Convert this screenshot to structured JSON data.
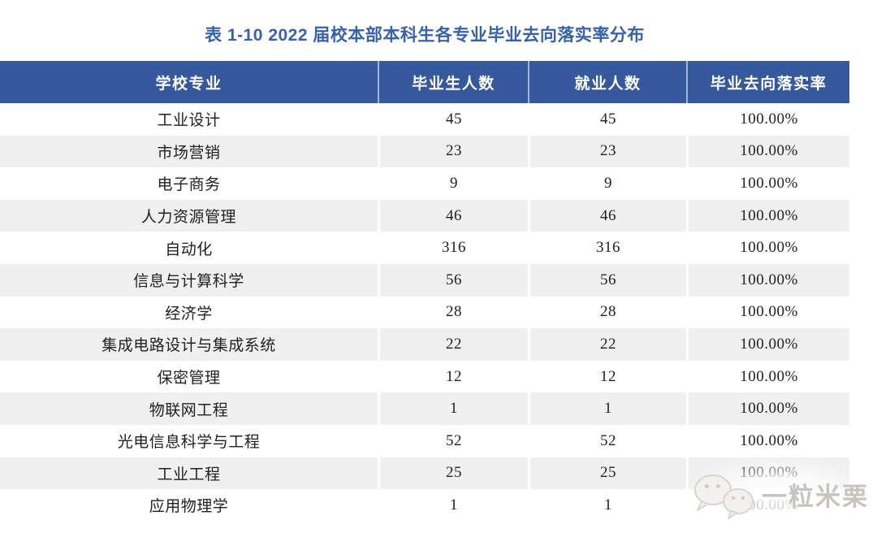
{
  "title": "表 1-10  2022 届校本部本科生各专业毕业去向落实率分布",
  "table": {
    "columns": [
      "学校专业",
      "毕业生人数",
      "就业人数",
      "毕业去向落实率"
    ],
    "rows": [
      {
        "major": "工业设计",
        "graduates": "45",
        "employed": "45",
        "rate": "100.00%"
      },
      {
        "major": "市场营销",
        "graduates": "23",
        "employed": "23",
        "rate": "100.00%"
      },
      {
        "major": "电子商务",
        "graduates": "9",
        "employed": "9",
        "rate": "100.00%"
      },
      {
        "major": "人力资源管理",
        "graduates": "46",
        "employed": "46",
        "rate": "100.00%"
      },
      {
        "major": "自动化",
        "graduates": "316",
        "employed": "316",
        "rate": "100.00%"
      },
      {
        "major": "信息与计算科学",
        "graduates": "56",
        "employed": "56",
        "rate": "100.00%"
      },
      {
        "major": "经济学",
        "graduates": "28",
        "employed": "28",
        "rate": "100.00%"
      },
      {
        "major": "集成电路设计与集成系统",
        "graduates": "22",
        "employed": "22",
        "rate": "100.00%"
      },
      {
        "major": "保密管理",
        "graduates": "12",
        "employed": "12",
        "rate": "100.00%"
      },
      {
        "major": "物联网工程",
        "graduates": "1",
        "employed": "1",
        "rate": "100.00%"
      },
      {
        "major": "光电信息科学与工程",
        "graduates": "52",
        "employed": "52",
        "rate": "100.00%"
      },
      {
        "major": "工业工程",
        "graduates": "25",
        "employed": "25",
        "rate": "100.00%"
      },
      {
        "major": "应用物理学",
        "graduates": "1",
        "employed": "1",
        "rate": "100.00%"
      }
    ]
  },
  "watermark": {
    "icon": "wechat-icon",
    "text": "一粒米栗"
  },
  "colors": {
    "title_blue": "#3761AD",
    "header_bg": "#36599E",
    "header_text": "#FFFFFF",
    "row_alt_bg": "#F0F0F0",
    "body_text": "#212121",
    "watermark_gray": "#C7C3BD"
  }
}
